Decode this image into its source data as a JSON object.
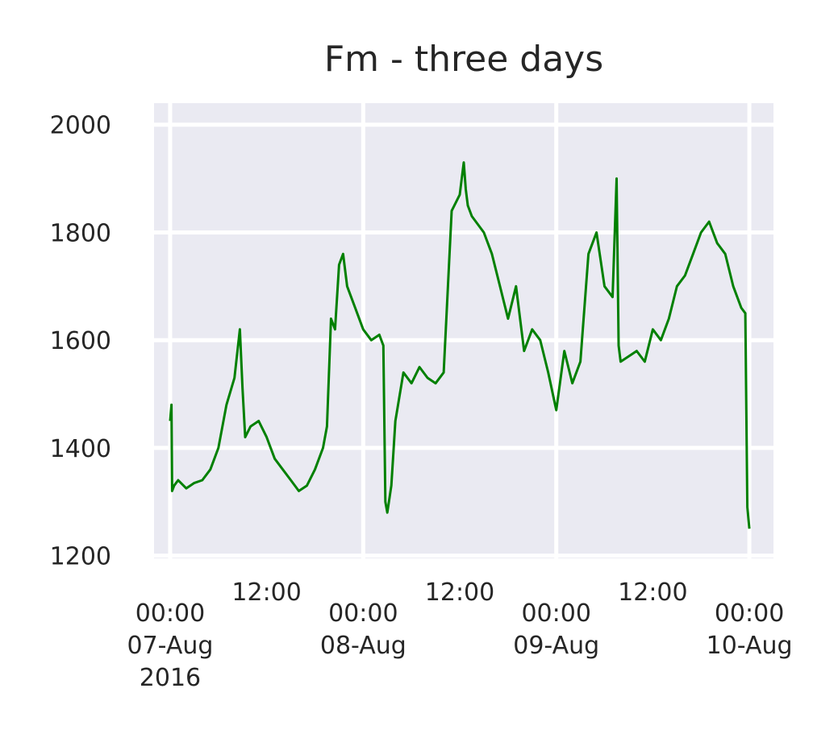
{
  "chart_data": {
    "type": "line",
    "title": "Fm - three days",
    "xlabel": "",
    "ylabel": "",
    "ylim": [
      1195,
      2040
    ],
    "xlim": [
      "2016-08-06 22:00",
      "2016-08-10 03:00"
    ],
    "grid": true,
    "background_color": "#EAEAF2",
    "grid_color": "#FFFFFF",
    "y_ticks": [
      {
        "value": 1200,
        "label": "1200"
      },
      {
        "value": 1400,
        "label": "1400"
      },
      {
        "value": 1600,
        "label": "1600"
      },
      {
        "value": 1800,
        "label": "1800"
      },
      {
        "value": 2000,
        "label": "2000"
      }
    ],
    "x_major_ticks": [
      {
        "value": "2016-08-07 00:00",
        "lines": [
          "00:00",
          "07-Aug",
          "2016"
        ]
      },
      {
        "value": "2016-08-08 00:00",
        "lines": [
          "00:00",
          "08-Aug"
        ]
      },
      {
        "value": "2016-08-09 00:00",
        "lines": [
          "00:00",
          "09-Aug"
        ]
      },
      {
        "value": "2016-08-10 00:00",
        "lines": [
          "00:00",
          "10-Aug"
        ]
      }
    ],
    "x_minor_ticks": [
      {
        "value": "2016-08-07 12:00",
        "label": "12:00"
      },
      {
        "value": "2016-08-08 12:00",
        "label": "12:00"
      },
      {
        "value": "2016-08-09 12:00",
        "label": "12:00"
      }
    ],
    "series": [
      {
        "color": "#008000",
        "x": [
          "2016-08-07 00:00",
          "2016-08-07 00:10",
          "2016-08-07 00:15",
          "2016-08-07 00:30",
          "2016-08-07 01:00",
          "2016-08-07 02:00",
          "2016-08-07 03:00",
          "2016-08-07 04:00",
          "2016-08-07 05:00",
          "2016-08-07 06:00",
          "2016-08-07 07:00",
          "2016-08-07 08:00",
          "2016-08-07 08:40",
          "2016-08-07 09:00",
          "2016-08-07 09:20",
          "2016-08-07 10:00",
          "2016-08-07 11:00",
          "2016-08-07 12:00",
          "2016-08-07 13:00",
          "2016-08-07 14:00",
          "2016-08-07 15:00",
          "2016-08-07 16:00",
          "2016-08-07 17:00",
          "2016-08-07 18:00",
          "2016-08-07 19:00",
          "2016-08-07 19:30",
          "2016-08-07 20:00",
          "2016-08-07 20:30",
          "2016-08-07 21:00",
          "2016-08-07 21:30",
          "2016-08-07 22:00",
          "2016-08-07 23:00",
          "2016-08-08 00:00",
          "2016-08-08 01:00",
          "2016-08-08 02:00",
          "2016-08-08 02:30",
          "2016-08-08 02:45",
          "2016-08-08 03:00",
          "2016-08-08 03:30",
          "2016-08-08 04:00",
          "2016-08-08 05:00",
          "2016-08-08 06:00",
          "2016-08-08 07:00",
          "2016-08-08 08:00",
          "2016-08-08 09:00",
          "2016-08-08 10:00",
          "2016-08-08 11:00",
          "2016-08-08 12:00",
          "2016-08-08 12:30",
          "2016-08-08 12:45",
          "2016-08-08 13:00",
          "2016-08-08 13:30",
          "2016-08-08 14:00",
          "2016-08-08 15:00",
          "2016-08-08 16:00",
          "2016-08-08 17:00",
          "2016-08-08 18:00",
          "2016-08-08 19:00",
          "2016-08-08 20:00",
          "2016-08-08 21:00",
          "2016-08-08 22:00",
          "2016-08-08 23:00",
          "2016-08-09 00:00",
          "2016-08-09 01:00",
          "2016-08-09 02:00",
          "2016-08-09 03:00",
          "2016-08-09 04:00",
          "2016-08-09 05:00",
          "2016-08-09 06:00",
          "2016-08-09 07:00",
          "2016-08-09 07:30",
          "2016-08-09 07:45",
          "2016-08-09 08:00",
          "2016-08-09 09:00",
          "2016-08-09 10:00",
          "2016-08-09 11:00",
          "2016-08-09 12:00",
          "2016-08-09 13:00",
          "2016-08-09 14:00",
          "2016-08-09 15:00",
          "2016-08-09 16:00",
          "2016-08-09 17:00",
          "2016-08-09 18:00",
          "2016-08-09 19:00",
          "2016-08-09 20:00",
          "2016-08-09 21:00",
          "2016-08-09 22:00",
          "2016-08-09 23:00",
          "2016-08-09 23:30",
          "2016-08-09 23:45",
          "2016-08-10 00:00"
        ],
        "y": [
          1450,
          1480,
          1320,
          1330,
          1340,
          1325,
          1335,
          1340,
          1360,
          1400,
          1480,
          1530,
          1620,
          1510,
          1420,
          1440,
          1450,
          1420,
          1380,
          1360,
          1340,
          1320,
          1330,
          1360,
          1400,
          1440,
          1640,
          1620,
          1740,
          1760,
          1700,
          1660,
          1620,
          1600,
          1610,
          1590,
          1300,
          1280,
          1330,
          1450,
          1540,
          1520,
          1550,
          1530,
          1520,
          1540,
          1840,
          1870,
          1930,
          1880,
          1850,
          1830,
          1820,
          1800,
          1760,
          1700,
          1640,
          1700,
          1580,
          1620,
          1600,
          1540,
          1470,
          1580,
          1520,
          1560,
          1760,
          1800,
          1700,
          1680,
          1900,
          1590,
          1560,
          1570,
          1580,
          1560,
          1620,
          1600,
          1640,
          1700,
          1720,
          1760,
          1800,
          1820,
          1780,
          1760,
          1700,
          1660,
          1650,
          1290,
          1250
        ]
      }
    ]
  }
}
